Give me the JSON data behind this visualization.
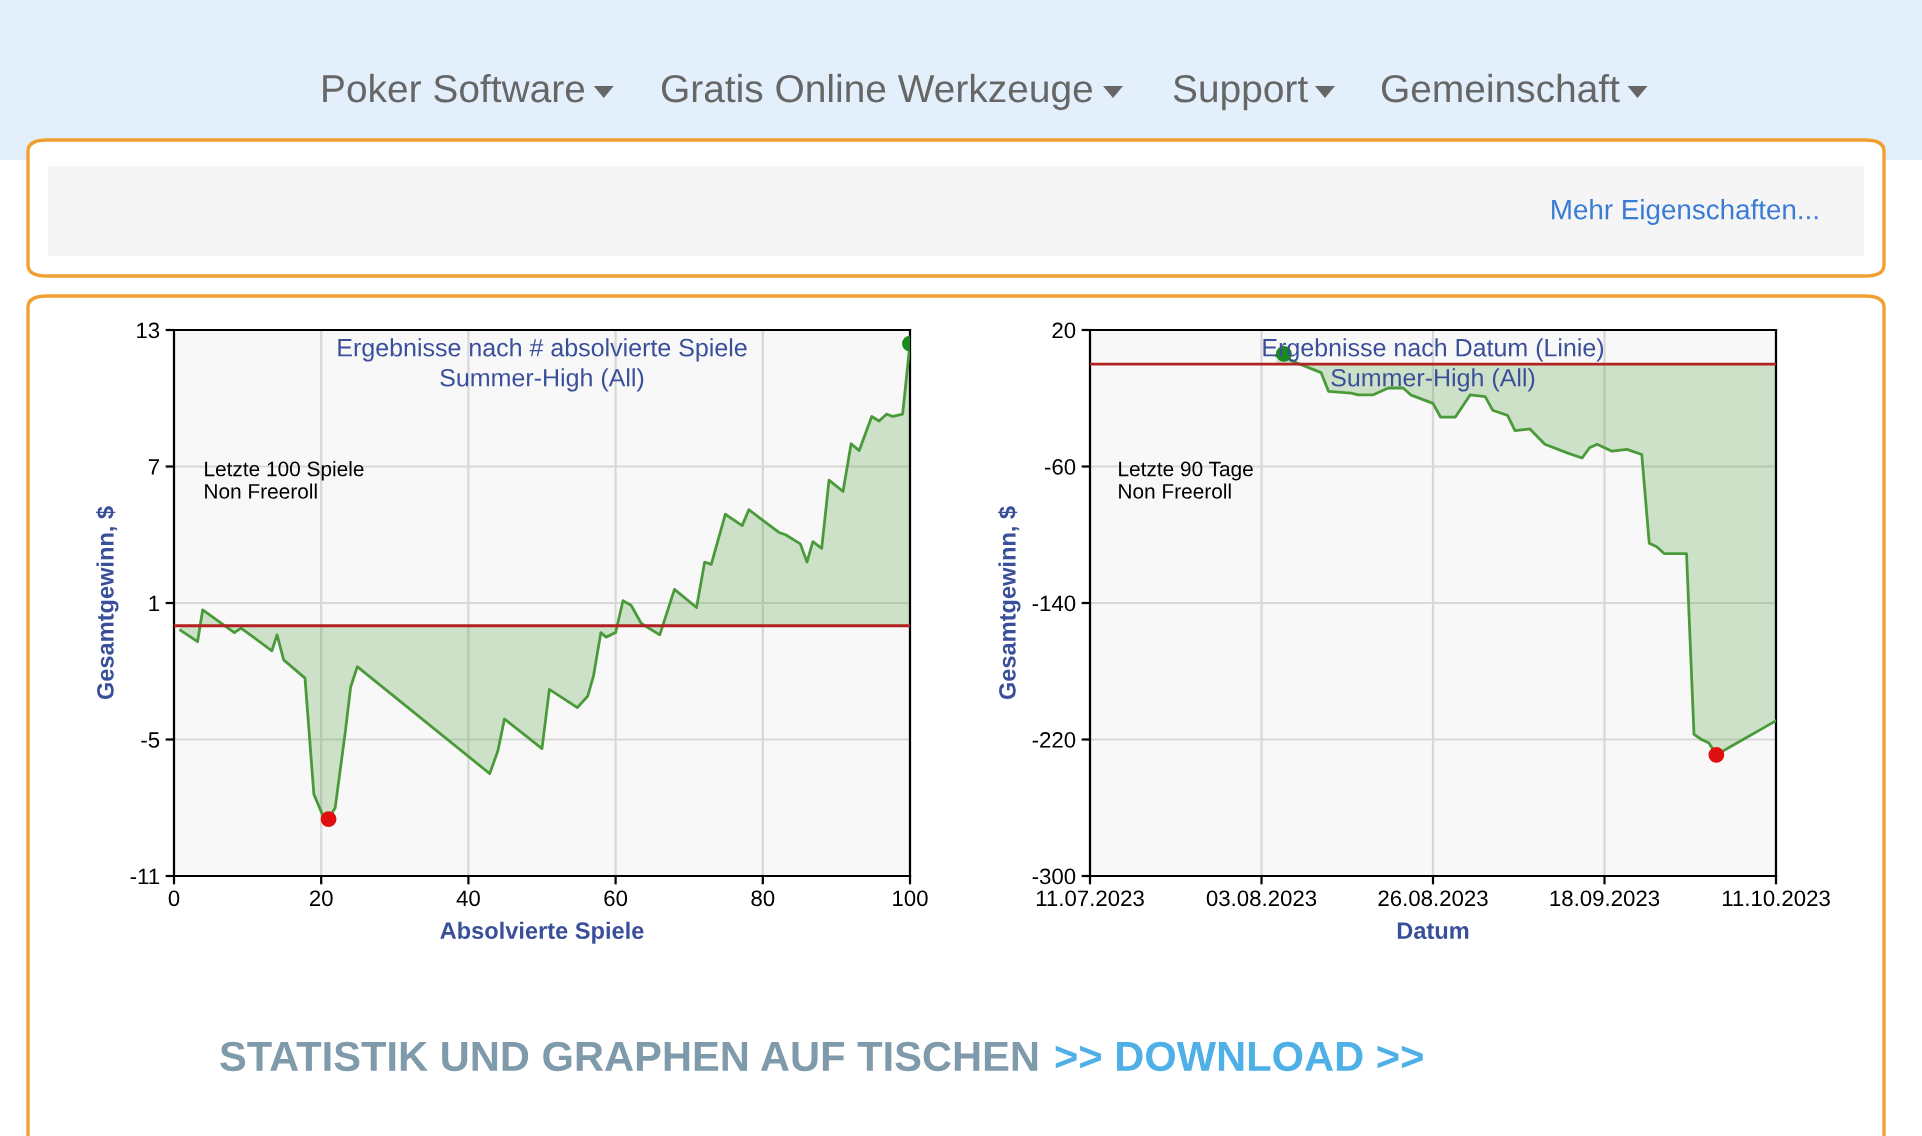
{
  "chart_data": [
    {
      "type": "other",
      "annotations": [
        "Poker Software",
        "Gratis Online Werkzeuge",
        "Support",
        "Gemeinschaft",
        "Mehr Eigenschaften...",
        "STATISTIK UND GRAPHEN AUF TISCHEN",
        ">> DOWNLOAD >>"
      ]
    },
    {
      "type": "area",
      "title": "Ergebnisse nach # absolvierte Spiele",
      "subtitle": "Summer-High (All)",
      "xlabel": "Absolvierte Spiele",
      "ylabel": "Gesamtgewinn, $",
      "annotations": [
        "Letzte 100 Spiele\nNon Freeroll"
      ],
      "xlim": [
        0,
        100
      ],
      "xticks": [
        0,
        20,
        40,
        60,
        80,
        100
      ],
      "ylim": [
        -11,
        13
      ],
      "yticks": [
        -11,
        -5,
        1,
        7,
        13
      ],
      "grid": true,
      "ref_lines": [
        {
          "axis": "y",
          "value": 0,
          "color": "#b22222"
        }
      ],
      "series": [
        {
          "color": "#4a9a3a",
          "x": [
            0.9,
            3.2,
            3.9,
            8.2,
            9.1,
            13.3,
            14,
            14.9,
            17.8,
            19,
            20.3,
            21,
            21.9,
            23.3,
            24,
            24.9,
            42.9,
            44,
            44.9,
            50,
            51,
            54.8,
            56.2,
            57,
            58,
            58.7,
            60,
            61,
            62.1,
            63.5,
            66,
            68,
            71,
            72.1,
            73,
            74.9,
            77.2,
            78.1,
            82.2,
            83.1,
            85.1,
            86,
            86.8,
            88,
            89,
            90.9,
            92,
            93.1,
            94.8,
            95.8,
            96.8,
            97.7,
            99,
            100
          ],
          "values": [
            -0.2,
            -0.7,
            0.7,
            -0.3,
            -0.1,
            -1.1,
            -0.4,
            -1.5,
            -2.3,
            -7.4,
            -8.4,
            -8.5,
            -8,
            -4.6,
            -2.7,
            -1.8,
            -6.5,
            -5.5,
            -4.1,
            -5.4,
            -2.8,
            -3.6,
            -3.1,
            -2.2,
            -0.3,
            -0.5,
            -0.3,
            1.1,
            0.9,
            0.1,
            -0.4,
            1.6,
            0.8,
            2.8,
            2.7,
            4.9,
            4.4,
            5.1,
            4.1,
            4,
            3.6,
            2.8,
            3.7,
            3.4,
            6.4,
            5.9,
            8,
            7.7,
            9.2,
            9,
            9.3,
            9.2,
            9.3,
            12.4
          ]
        },
        {
          "type": "scatter",
          "color": "#1a8a1a",
          "x": [
            100
          ],
          "values": [
            12.4
          ]
        },
        {
          "type": "scatter",
          "color": "#e01010",
          "x": [
            21
          ],
          "values": [
            -8.5
          ]
        }
      ]
    },
    {
      "type": "area",
      "title": "Ergebnisse nach Datum (Linie)",
      "subtitle": "Summer-High (All)",
      "xlabel": "Datum",
      "ylabel": "Gesamtgewinn, $",
      "annotations": [
        "Letzte 90 Tage\nNon Freeroll"
      ],
      "xlim": [
        "2023-07-11",
        "2023-10-11"
      ],
      "xticks": [
        {
          "value": "2023-07-11",
          "label": "11.07.2023"
        },
        {
          "value": "2023-08-03",
          "label": "03.08.2023"
        },
        {
          "value": "2023-08-26",
          "label": "26.08.2023"
        },
        {
          "value": "2023-09-18",
          "label": "18.09.2023"
        },
        {
          "value": "2023-10-11",
          "label": "11.10.2023"
        }
      ],
      "ylim": [
        -300,
        20
      ],
      "yticks": [
        -300,
        -220,
        -140,
        -60,
        20
      ],
      "grid": true,
      "ref_lines": [
        {
          "axis": "y",
          "value": 0,
          "color": "#b22222"
        }
      ],
      "series": [
        {
          "color": "#4a9a3a",
          "x": [
            "2023-08-05",
            "2023-08-06",
            "2023-08-07",
            "2023-08-11",
            "2023-08-12",
            "2023-08-15",
            "2023-08-16",
            "2023-08-18",
            "2023-08-20",
            "2023-08-22",
            "2023-08-23",
            "2023-08-26",
            "2023-08-27",
            "2023-08-29",
            "2023-08-31",
            "2023-09-02",
            "2023-09-03",
            "2023-09-05",
            "2023-09-06",
            "2023-09-08",
            "2023-09-10",
            "2023-09-13",
            "2023-09-15",
            "2023-09-16",
            "2023-09-17",
            "2023-09-19",
            "2023-09-21",
            "2023-09-23",
            "2023-09-24",
            "2023-09-25",
            "2023-09-26",
            "2023-09-29",
            "2023-09-30",
            "2023-10-01",
            "2023-10-02",
            "2023-10-03",
            "2023-10-05",
            "2023-10-11"
          ],
          "values": [
            5,
            6,
            2,
            -5,
            -16,
            -17,
            -18,
            -18,
            -14,
            -14,
            -18,
            -23,
            -31,
            -31,
            -18,
            -19,
            -27,
            -30,
            -39,
            -38,
            -47,
            -52,
            -55,
            -49,
            -47,
            -51,
            -50,
            -53,
            -105,
            -107,
            -111,
            -111,
            -217,
            -220,
            -222,
            -229,
            -224,
            -209
          ]
        },
        {
          "type": "scatter",
          "color": "#1a8a1a",
          "x": [
            "2023-08-06"
          ],
          "values": [
            6
          ]
        },
        {
          "type": "scatter",
          "color": "#e01010",
          "x": [
            "2023-10-03"
          ],
          "values": [
            -229
          ]
        }
      ]
    }
  ]
}
